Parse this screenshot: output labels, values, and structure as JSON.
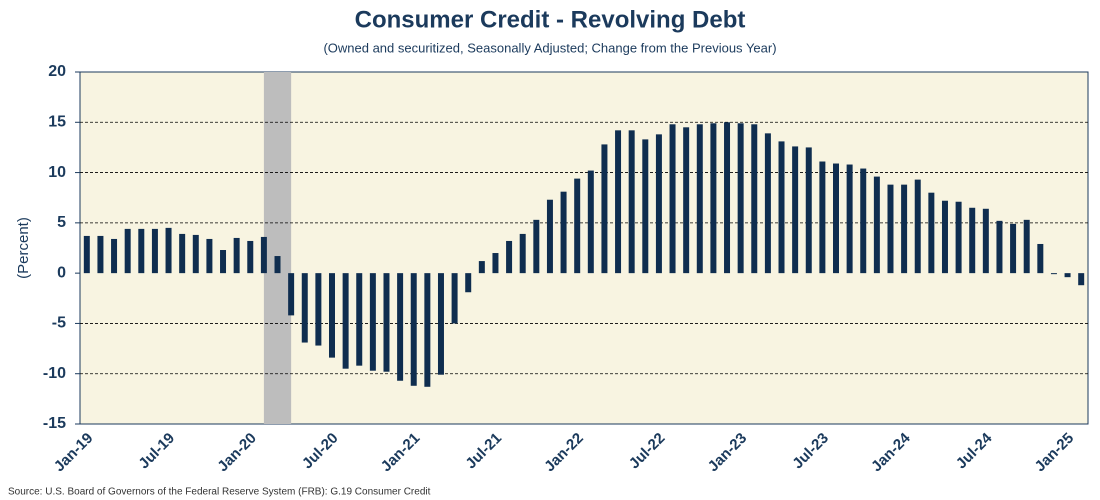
{
  "chart_data": {
    "type": "bar",
    "title": "Consumer Credit - Revolving Debt",
    "subtitle": "(Owned and securitized, Seasonally Adjusted; Change from the Previous Year)",
    "y_label": "(Percent)",
    "source": "Source: U.S. Board of Governors of the Federal Reserve System (FRB): G.19 Consumer Credit",
    "categories": [
      "Jan-19",
      null,
      null,
      null,
      null,
      null,
      "Jul-19",
      null,
      null,
      null,
      null,
      null,
      "Jan-20",
      null,
      null,
      null,
      null,
      null,
      "Jul-20",
      null,
      null,
      null,
      null,
      null,
      "Jan-21",
      null,
      null,
      null,
      null,
      null,
      "Jul-21",
      null,
      null,
      null,
      null,
      null,
      "Jan-22",
      null,
      null,
      null,
      null,
      null,
      "Jul-22",
      null,
      null,
      null,
      null,
      null,
      "Jan-23",
      null,
      null,
      null,
      null,
      null,
      "Jul-23",
      null,
      null,
      null,
      null,
      null,
      "Jan-24",
      null,
      null,
      null,
      null,
      null,
      "Jul-24",
      null,
      null,
      null,
      null,
      null,
      "Jan-25",
      null
    ],
    "values": [
      3.7,
      3.7,
      3.4,
      4.4,
      4.4,
      4.4,
      4.5,
      3.9,
      3.8,
      3.4,
      2.3,
      3.5,
      3.2,
      3.6,
      1.7,
      -4.2,
      -6.9,
      -7.2,
      -8.4,
      -9.5,
      -9.2,
      -9.7,
      -9.8,
      -10.7,
      -11.2,
      -11.3,
      -10.1,
      -5.0,
      -1.9,
      1.2,
      2.0,
      3.2,
      3.9,
      5.3,
      7.3,
      8.1,
      9.4,
      10.2,
      12.8,
      14.2,
      14.2,
      13.3,
      13.8,
      14.8,
      14.5,
      14.8,
      14.9,
      15.0,
      14.9,
      14.8,
      13.9,
      13.1,
      12.6,
      12.5,
      11.1,
      10.9,
      10.8,
      10.4,
      9.6,
      8.8,
      8.8,
      9.3,
      8.0,
      7.2,
      7.1,
      6.5,
      6.4,
      5.2,
      4.9,
      5.3,
      2.9,
      -0.1,
      -0.4,
      -1.2
    ],
    "color": "#0f2d4f",
    "shaded_range": [
      13,
      15
    ],
    "shade_color": "#bdbdbd",
    "ylim": [
      -15,
      20
    ],
    "yticks": [
      -15,
      -10,
      -5,
      0,
      5,
      10,
      15,
      20
    ],
    "grid": true
  }
}
